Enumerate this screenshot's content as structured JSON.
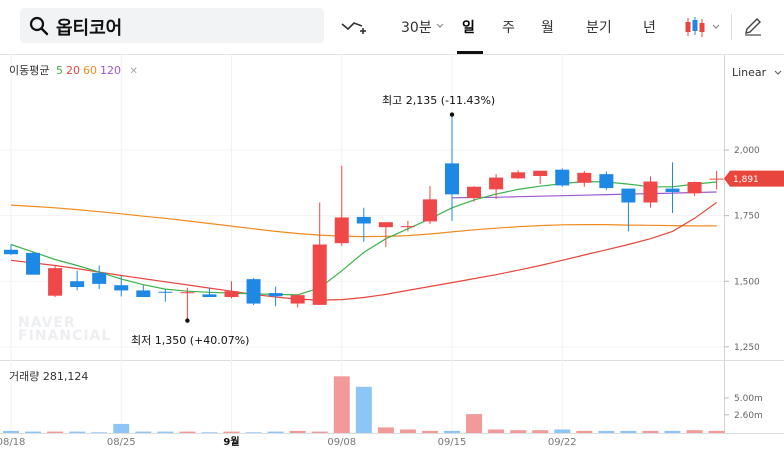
{
  "search": {
    "query": "옵티코어"
  },
  "periods": [
    {
      "label": "30분",
      "dropdown": true,
      "selected": false
    },
    {
      "label": "일",
      "selected": true
    },
    {
      "label": "주",
      "selected": false
    },
    {
      "label": "월",
      "selected": false
    },
    {
      "label": "분기",
      "selected": false
    },
    {
      "label": "년",
      "selected": false
    }
  ],
  "ma_legend": {
    "title": "이동평균",
    "items": [
      {
        "label": "5",
        "color": "#3cb34a"
      },
      {
        "label": "20",
        "color": "#e8453c"
      },
      {
        "label": "60",
        "color": "#f28a1e"
      },
      {
        "label": "120",
        "color": "#9b59d0"
      }
    ]
  },
  "scale_mode": "Linear",
  "annotations": {
    "high": "최고 2,135 (-11.43%)",
    "low": "최저 1,350 (+40.07%)"
  },
  "watermark": [
    "NAVER",
    "FINANCIAL"
  ],
  "volume_label": "거래량 281,124",
  "colors": {
    "up": "#f04848",
    "down": "#1e88e5",
    "up_vol": "#f29a9a",
    "down_vol": "#8ec5f7"
  },
  "chart_data": {
    "type": "candlestick",
    "price_ticks": [
      "2,000",
      "1,750",
      "1,500",
      "1,250"
    ],
    "price_tick_values": [
      2000,
      1750,
      1500,
      1250
    ],
    "current_price": "1,891",
    "current_price_value": 1891,
    "volume_ticks": [
      "5.00m",
      "2.60m"
    ],
    "volume_tick_values": [
      5.0,
      2.6
    ],
    "x_labels": [
      {
        "label": "08/18",
        "index": 0
      },
      {
        "label": "08/25",
        "index": 5
      },
      {
        "label": "9월",
        "index": 10,
        "bold": true
      },
      {
        "label": "09/08",
        "index": 15
      },
      {
        "label": "09/15",
        "index": 20
      },
      {
        "label": "09/22",
        "index": 25
      }
    ],
    "candles": [
      {
        "o": 1620,
        "h": 1640,
        "l": 1600,
        "c": 1603
      },
      {
        "o": 1608,
        "h": 1612,
        "l": 1530,
        "c": 1525
      },
      {
        "o": 1445,
        "h": 1560,
        "l": 1440,
        "c": 1550
      },
      {
        "o": 1500,
        "h": 1540,
        "l": 1465,
        "c": 1478
      },
      {
        "o": 1532,
        "h": 1560,
        "l": 1470,
        "c": 1490
      },
      {
        "o": 1485,
        "h": 1520,
        "l": 1442,
        "c": 1465
      },
      {
        "o": 1465,
        "h": 1485,
        "l": 1440,
        "c": 1440
      },
      {
        "o": 1460,
        "h": 1470,
        "l": 1422,
        "c": 1457
      },
      {
        "o": 1455,
        "h": 1475,
        "l": 1350,
        "c": 1458
      },
      {
        "o": 1450,
        "h": 1475,
        "l": 1440,
        "c": 1440
      },
      {
        "o": 1440,
        "h": 1500,
        "l": 1435,
        "c": 1462
      },
      {
        "o": 1508,
        "h": 1512,
        "l": 1410,
        "c": 1415
      },
      {
        "o": 1455,
        "h": 1480,
        "l": 1405,
        "c": 1443
      },
      {
        "o": 1415,
        "h": 1450,
        "l": 1400,
        "c": 1447
      },
      {
        "o": 1410,
        "h": 1800,
        "l": 1410,
        "c": 1640
      },
      {
        "o": 1645,
        "h": 1940,
        "l": 1635,
        "c": 1743
      },
      {
        "o": 1745,
        "h": 1780,
        "l": 1650,
        "c": 1720
      },
      {
        "o": 1706,
        "h": 1725,
        "l": 1630,
        "c": 1725
      },
      {
        "o": 1708,
        "h": 1730,
        "l": 1690,
        "c": 1710
      },
      {
        "o": 1728,
        "h": 1863,
        "l": 1718,
        "c": 1812
      },
      {
        "o": 1949,
        "h": 2135,
        "l": 1730,
        "c": 1831
      },
      {
        "o": 1817,
        "h": 1862,
        "l": 1803,
        "c": 1860
      },
      {
        "o": 1850,
        "h": 1908,
        "l": 1813,
        "c": 1895
      },
      {
        "o": 1892,
        "h": 1923,
        "l": 1890,
        "c": 1915
      },
      {
        "o": 1901,
        "h": 1919,
        "l": 1870,
        "c": 1921
      },
      {
        "o": 1925,
        "h": 1930,
        "l": 1860,
        "c": 1865
      },
      {
        "o": 1875,
        "h": 1920,
        "l": 1860,
        "c": 1913
      },
      {
        "o": 1908,
        "h": 1918,
        "l": 1847,
        "c": 1855
      },
      {
        "o": 1853,
        "h": 1850,
        "l": 1690,
        "c": 1800
      },
      {
        "o": 1800,
        "h": 1900,
        "l": 1780,
        "c": 1880
      },
      {
        "o": 1853,
        "h": 1953,
        "l": 1760,
        "c": 1840
      },
      {
        "o": 1835,
        "h": 1880,
        "l": 1825,
        "c": 1878
      },
      {
        "o": 1891,
        "h": 1920,
        "l": 1850,
        "c": 1891
      }
    ],
    "volume": [
      0.3,
      0.2,
      0.2,
      0.2,
      0.1,
      1.3,
      0.2,
      0.2,
      0.2,
      0.1,
      0.2,
      0.1,
      0.2,
      0.3,
      0.2,
      8.1,
      6.6,
      0.8,
      0.5,
      0.3,
      0.3,
      2.7,
      0.5,
      0.4,
      0.4,
      0.5,
      0.3,
      0.3,
      0.3,
      0.3,
      0.3,
      0.4,
      0.3
    ],
    "ma5": [
      1640,
      1612,
      1583,
      1560,
      1535,
      1508,
      1487,
      1470,
      1462,
      1458,
      1455,
      1452,
      1450,
      1448,
      1475,
      1540,
      1610,
      1662,
      1700,
      1738,
      1780,
      1810,
      1832,
      1850,
      1862,
      1872,
      1880,
      1878,
      1870,
      1860,
      1860,
      1870,
      1878
    ],
    "ma20": [
      1580,
      1570,
      1560,
      1548,
      1535,
      1522,
      1510,
      1498,
      1486,
      1474,
      1462,
      1450,
      1440,
      1432,
      1428,
      1430,
      1438,
      1450,
      1465,
      1480,
      1495,
      1510,
      1525,
      1542,
      1560,
      1580,
      1600,
      1620,
      1640,
      1662,
      1690,
      1740,
      1800
    ],
    "ma60": [
      1790,
      1785,
      1780,
      1773,
      1765,
      1757,
      1748,
      1740,
      1730,
      1720,
      1710,
      1700,
      1690,
      1682,
      1676,
      1672,
      1670,
      1671,
      1674,
      1680,
      1688,
      1696,
      1702,
      1708,
      1712,
      1715,
      1716,
      1716,
      1714,
      1713,
      1712,
      1711,
      1711
    ],
    "ma120": [
      null,
      null,
      null,
      null,
      null,
      null,
      null,
      null,
      null,
      null,
      null,
      null,
      null,
      null,
      null,
      null,
      null,
      null,
      null,
      null,
      1818,
      1819,
      1820,
      1822,
      1824,
      1826,
      1828,
      1830,
      1832,
      1834,
      1836,
      1838,
      1840
    ]
  }
}
